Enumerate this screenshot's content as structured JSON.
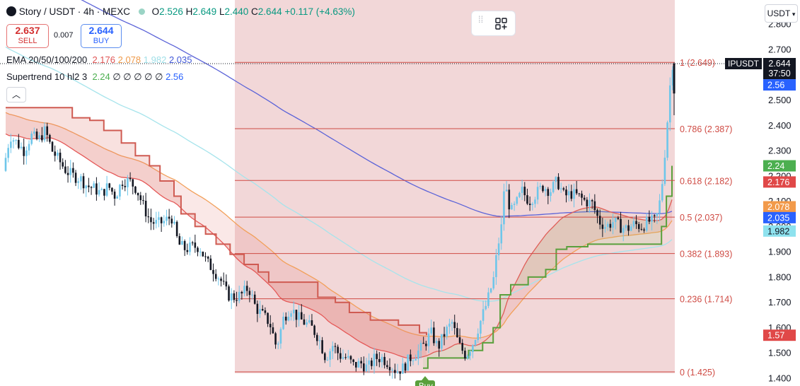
{
  "header": {
    "symbol_title": "Story / USDT · 4h · MEXC",
    "o_label": "O",
    "o_value": "2.526",
    "h_label": "H",
    "h_value": "2.649",
    "l_label": "L",
    "l_value": "2.440",
    "c_label": "C",
    "c_value": "2.644",
    "change": "+0.117 (+4.63%)"
  },
  "trade": {
    "sell_price": "2.637",
    "sell_label": "SELL",
    "spread": "0.007",
    "buy_price": "2.644",
    "buy_label": "BUY"
  },
  "ema": {
    "label": "EMA 20/50/100/200",
    "v20": "2.176",
    "v50": "2.078",
    "v100": "1.982",
    "v200": "2.035"
  },
  "supertrend": {
    "label": "Supertrend 10 hl2 3",
    "v1": "2.24",
    "dots": "∅ ∅ ∅ ∅ ∅",
    "v2": "2.56"
  },
  "currency_button": "USDT",
  "price_tag": {
    "symbol": "IPUSDT",
    "price": "2.644",
    "countdown": "37:50"
  },
  "colors": {
    "up": "#26a69a",
    "down": "#131722",
    "wick_up": "#6ec6ea",
    "ema20": "#e65555",
    "ema50": "#f2a05a",
    "ema100": "#a6e4ec",
    "ema200": "#5b63d8",
    "supertrend_down": "#cf5b52",
    "supertrend_up": "#5aa03c",
    "fib_line": "#cf4b44"
  },
  "chart_data": {
    "type": "candlestick",
    "yticks": [
      "1.400",
      "1.500",
      "1.600",
      "1.700",
      "1.800",
      "1.900",
      "2.000",
      "2.100",
      "2.200",
      "2.300",
      "2.400",
      "2.500",
      "2.600",
      "2.700",
      "2.800"
    ],
    "ylim": [
      1.4,
      2.8
    ],
    "fib_levels": [
      {
        "ratio": "1",
        "price": 2.649,
        "label": "1 (2.649)"
      },
      {
        "ratio": "0.786",
        "price": 2.387,
        "label": "0.786 (2.387)"
      },
      {
        "ratio": "0.618",
        "price": 2.182,
        "label": "0.618 (2.182)"
      },
      {
        "ratio": "0.5",
        "price": 2.037,
        "label": "0.5 (2.037)"
      },
      {
        "ratio": "0.382",
        "price": 1.893,
        "label": "0.382 (1.893)"
      },
      {
        "ratio": "0.236",
        "price": 1.714,
        "label": "0.236 (1.714)"
      },
      {
        "ratio": "0",
        "price": 1.425,
        "label": "0 (1.425)"
      }
    ],
    "axis_tags": [
      {
        "value": "2.56",
        "price": 2.56,
        "color": "#2962ff"
      },
      {
        "value": "2.24",
        "price": 2.24,
        "color": "#4caf50"
      },
      {
        "value": "2.176",
        "price": 2.176,
        "color": "#e04848"
      },
      {
        "value": "2.078",
        "price": 2.078,
        "color": "#f29a4a"
      },
      {
        "value": "2.035",
        "price": 2.035,
        "color": "#2962ff"
      },
      {
        "value": "1.982",
        "price": 1.982,
        "color": "#8ee2ee"
      },
      {
        "value": "1.57",
        "price": 1.57,
        "color": "#e04848"
      }
    ],
    "buy_signal_label": "Buy",
    "close_path": [
      [
        0,
        2.22
      ],
      [
        10,
        2.36
      ],
      [
        20,
        2.33
      ],
      [
        30,
        2.3
      ],
      [
        40,
        2.36
      ],
      [
        50,
        2.34
      ],
      [
        60,
        2.38
      ],
      [
        70,
        2.3
      ],
      [
        80,
        2.26
      ],
      [
        90,
        2.22
      ],
      [
        100,
        2.2
      ],
      [
        110,
        2.19
      ],
      [
        120,
        2.16
      ],
      [
        130,
        2.15
      ],
      [
        140,
        2.13
      ],
      [
        150,
        2.16
      ],
      [
        160,
        2.12
      ],
      [
        170,
        2.18
      ],
      [
        180,
        2.18
      ],
      [
        190,
        2.15
      ],
      [
        200,
        2.08
      ],
      [
        210,
        2.02
      ],
      [
        220,
        2.01
      ],
      [
        230,
        2.02
      ],
      [
        240,
        2.04
      ],
      [
        250,
        1.93
      ],
      [
        260,
        1.91
      ],
      [
        270,
        1.92
      ],
      [
        280,
        1.92
      ],
      [
        290,
        1.86
      ],
      [
        300,
        1.83
      ],
      [
        310,
        1.79
      ],
      [
        320,
        1.73
      ],
      [
        330,
        1.72
      ],
      [
        340,
        1.73
      ],
      [
        350,
        1.76
      ],
      [
        360,
        1.68
      ],
      [
        370,
        1.65
      ],
      [
        380,
        1.62
      ],
      [
        390,
        1.52
      ],
      [
        400,
        1.64
      ],
      [
        410,
        1.68
      ],
      [
        420,
        1.64
      ],
      [
        430,
        1.62
      ],
      [
        440,
        1.6
      ],
      [
        450,
        1.56
      ],
      [
        460,
        1.48
      ],
      [
        470,
        1.53
      ],
      [
        480,
        1.49
      ],
      [
        490,
        1.48
      ],
      [
        500,
        1.45
      ],
      [
        510,
        1.46
      ],
      [
        520,
        1.44
      ],
      [
        530,
        1.48
      ],
      [
        540,
        1.48
      ],
      [
        550,
        1.46
      ],
      [
        560,
        1.43
      ],
      [
        570,
        1.44
      ],
      [
        580,
        1.48
      ],
      [
        590,
        1.5
      ],
      [
        600,
        1.53
      ],
      [
        610,
        1.58
      ],
      [
        620,
        1.52
      ],
      [
        630,
        1.58
      ],
      [
        640,
        1.62
      ],
      [
        650,
        1.53
      ],
      [
        660,
        1.49
      ],
      [
        670,
        1.54
      ],
      [
        680,
        1.62
      ],
      [
        690,
        1.7
      ],
      [
        700,
        1.8
      ],
      [
        705,
        1.92
      ],
      [
        710,
        1.98
      ],
      [
        715,
        2.18
      ],
      [
        720,
        2.1
      ],
      [
        725,
        2.06
      ],
      [
        730,
        2.08
      ],
      [
        740,
        2.14
      ],
      [
        750,
        2.1
      ],
      [
        760,
        2.13
      ],
      [
        770,
        2.16
      ],
      [
        780,
        2.14
      ],
      [
        790,
        2.18
      ],
      [
        800,
        2.12
      ],
      [
        810,
        2.13
      ],
      [
        820,
        2.12
      ],
      [
        830,
        2.1
      ],
      [
        840,
        2.09
      ],
      [
        850,
        2.02
      ],
      [
        860,
        2.0
      ],
      [
        870,
        2.02
      ],
      [
        880,
        2.0
      ],
      [
        890,
        1.99
      ],
      [
        900,
        2.01
      ],
      [
        910,
        2.0
      ],
      [
        920,
        2.02
      ],
      [
        930,
        2.02
      ],
      [
        935,
        2.07
      ],
      [
        940,
        2.18
      ],
      [
        945,
        2.34
      ],
      [
        950,
        2.52
      ],
      [
        953,
        2.644
      ]
    ]
  }
}
